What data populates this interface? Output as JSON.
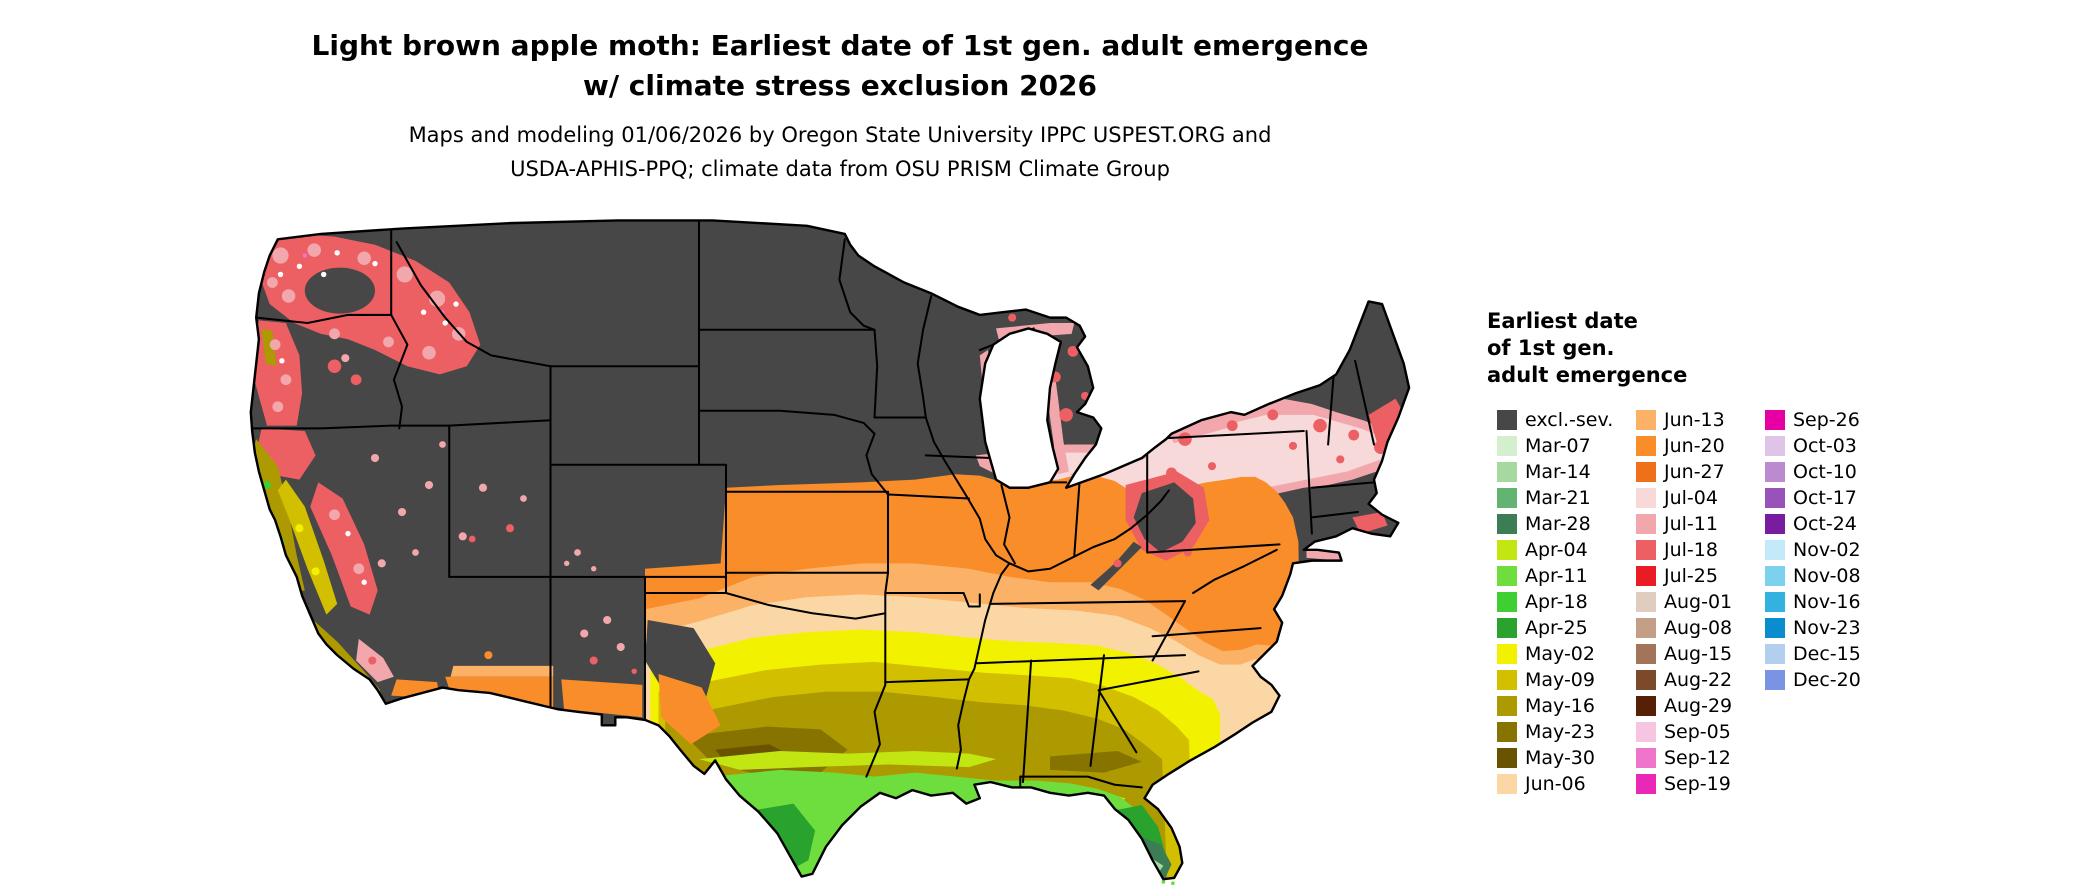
{
  "title": {
    "line1": "Light brown apple moth: Earliest date of 1st gen. adult emergence",
    "line2": "w/ climate stress exclusion 2026"
  },
  "subtitle": {
    "line1": "Maps and modeling 01/06/2026 by Oregon State University IPPC USPEST.ORG and",
    "line2": "USDA-APHIS-PPQ; climate data from OSU PRISM Climate Group"
  },
  "map": {
    "region": "contiguous United States choropleth of earliest 1st gen. adult emergence date"
  },
  "legend": {
    "title_lines": [
      "Earliest date",
      "of 1st gen.",
      "adult emergence"
    ],
    "columns": [
      {
        "items": [
          {
            "label": "excl.-sev.",
            "color": "#474747"
          },
          {
            "label": "Mar-07",
            "color": "#d3efcd"
          },
          {
            "label": "Mar-14",
            "color": "#a5d9a0"
          },
          {
            "label": "Mar-21",
            "color": "#63b473"
          },
          {
            "label": "Mar-28",
            "color": "#3c7d55"
          },
          {
            "label": "Apr-04",
            "color": "#c2e612"
          },
          {
            "label": "Apr-11",
            "color": "#6ede3e"
          },
          {
            "label": "Apr-18",
            "color": "#3ecf33"
          },
          {
            "label": "Apr-25",
            "color": "#2aa32e"
          },
          {
            "label": "May-02",
            "color": "#f2f200"
          },
          {
            "label": "May-09",
            "color": "#d2c000"
          },
          {
            "label": "May-16",
            "color": "#ac9a00"
          },
          {
            "label": "May-23",
            "color": "#877400"
          },
          {
            "label": "May-30",
            "color": "#6a5300"
          },
          {
            "label": "Jun-06",
            "color": "#fcd7a6"
          }
        ]
      },
      {
        "items": [
          {
            "label": "Jun-13",
            "color": "#fbb166"
          },
          {
            "label": "Jun-20",
            "color": "#f88d2a"
          },
          {
            "label": "Jun-27",
            "color": "#ee7018"
          },
          {
            "label": "Jul-04",
            "color": "#f7d9da"
          },
          {
            "label": "Jul-11",
            "color": "#f2a7ad"
          },
          {
            "label": "Jul-18",
            "color": "#ec5f63"
          },
          {
            "label": "Jul-25",
            "color": "#e91c25"
          },
          {
            "label": "Aug-01",
            "color": "#e0cdc0"
          },
          {
            "label": "Aug-08",
            "color": "#c49f88"
          },
          {
            "label": "Aug-15",
            "color": "#a2755b"
          },
          {
            "label": "Aug-22",
            "color": "#7c4a2b"
          },
          {
            "label": "Aug-29",
            "color": "#581f07"
          },
          {
            "label": "Sep-05",
            "color": "#f6c5e2"
          },
          {
            "label": "Sep-12",
            "color": "#ef75cc"
          },
          {
            "label": "Sep-19",
            "color": "#e928b5"
          }
        ]
      },
      {
        "items": [
          {
            "label": "Sep-26",
            "color": "#e600a4"
          },
          {
            "label": "Oct-03",
            "color": "#dec4e7"
          },
          {
            "label": "Oct-10",
            "color": "#bb8ad0"
          },
          {
            "label": "Oct-17",
            "color": "#9852b9"
          },
          {
            "label": "Oct-24",
            "color": "#781d9f"
          },
          {
            "label": "Nov-02",
            "color": "#c4eaf9"
          },
          {
            "label": "Nov-08",
            "color": "#7cd2ee"
          },
          {
            "label": "Nov-16",
            "color": "#33b1e1"
          },
          {
            "label": "Nov-23",
            "color": "#0a8dcf"
          },
          {
            "label": "Dec-15",
            "color": "#b2d0ee"
          },
          {
            "label": "Dec-20",
            "color": "#7a93e5"
          }
        ]
      }
    ]
  }
}
